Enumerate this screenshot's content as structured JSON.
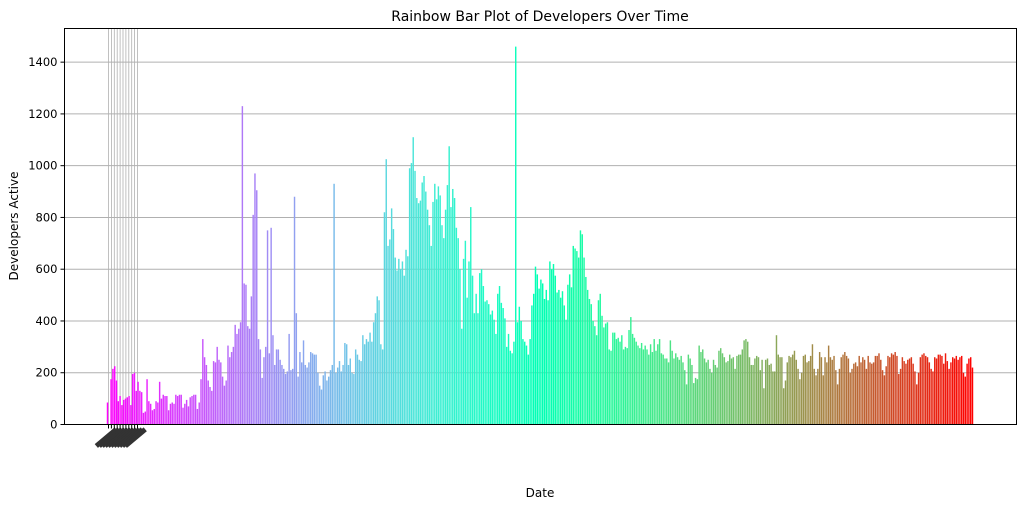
{
  "chart_data": {
    "type": "bar",
    "title": "Rainbow Bar Plot of Developers Over Time",
    "xlabel": "Date",
    "ylabel": "Developers Active",
    "ylim": [
      0,
      1530
    ],
    "yticks": [
      0,
      200,
      400,
      600,
      800,
      1000,
      1200,
      1400
    ],
    "grid": "y",
    "colormap": "rainbow",
    "x_tick_labels": "illegible (overlapping rotated date labels at start of axis)",
    "series": [
      {
        "values": [
          85,
          0,
          175,
          215,
          225,
          170,
          90,
          110,
          75,
          95,
          100,
          105,
          110,
          75,
          195,
          200,
          130,
          165,
          130,
          125,
          45,
          50,
          175,
          90,
          80,
          55,
          60,
          90,
          85,
          165,
          100,
          115,
          110,
          110,
          55,
          80,
          85,
          80,
          115,
          110,
          115,
          115,
          65,
          80,
          95,
          70,
          105,
          110,
          115,
          115,
          60,
          85,
          175,
          330,
          260,
          230,
          170,
          145,
          130,
          245,
          240,
          300,
          250,
          240,
          185,
          150,
          170,
          305,
          260,
          280,
          300,
          385,
          350,
          370,
          395,
          1230,
          545,
          540,
          380,
          370,
          495,
          810,
          970,
          905,
          330,
          290,
          180,
          260,
          300,
          750,
          275,
          760,
          345,
          230,
          290,
          290,
          250,
          230,
          215,
          195,
          205,
          350,
          210,
          215,
          880,
          430,
          185,
          280,
          240,
          325,
          230,
          220,
          240,
          280,
          275,
          270,
          270,
          200,
          150,
          135,
          190,
          205,
          170,
          185,
          210,
          230,
          930,
          200,
          220,
          245,
          205,
          230,
          315,
          310,
          230,
          255,
          200,
          195,
          290,
          270,
          250,
          245,
          345,
          310,
          330,
          320,
          355,
          320,
          395,
          430,
          495,
          480,
          310,
          290,
          820,
          1025,
          690,
          715,
          835,
          755,
          645,
          595,
          640,
          600,
          630,
          575,
          675,
          650,
          990,
          1010,
          1110,
          980,
          875,
          855,
          865,
          935,
          960,
          900,
          830,
          770,
          690,
          860,
          930,
          870,
          920,
          885,
          770,
          720,
          830,
          925,
          1075,
          840,
          910,
          875,
          760,
          720,
          600,
          370,
          640,
          710,
          490,
          630,
          840,
          575,
          430,
          505,
          430,
          585,
          600,
          535,
          475,
          480,
          465,
          425,
          440,
          405,
          350,
          505,
          535,
          470,
          450,
          410,
          300,
          350,
          285,
          275,
          320,
          1460,
          395,
          455,
          400,
          330,
          320,
          305,
          270,
          330,
          460,
          505,
          610,
          580,
          525,
          560,
          545,
          485,
          520,
          480,
          630,
          600,
          620,
          575,
          510,
          520,
          490,
          515,
          460,
          405,
          540,
          580,
          530,
          690,
          680,
          670,
          645,
          750,
          735,
          645,
          570,
          520,
          485,
          465,
          400,
          380,
          345,
          480,
          505,
          420,
          375,
          390,
          395,
          290,
          285,
          355,
          355,
          330,
          335,
          320,
          345,
          290,
          300,
          295,
          365,
          415,
          350,
          335,
          320,
          305,
          295,
          315,
          290,
          305,
          290,
          270,
          310,
          280,
          330,
          285,
          310,
          330,
          275,
          270,
          255,
          255,
          240,
          325,
          285,
          255,
          275,
          260,
          250,
          265,
          240,
          210,
          155,
          270,
          255,
          230,
          160,
          180,
          175,
          305,
          280,
          290,
          255,
          240,
          250,
          215,
          200,
          250,
          230,
          220,
          285,
          295,
          275,
          260,
          240,
          245,
          270,
          255,
          260,
          215,
          265,
          270,
          270,
          290,
          325,
          330,
          320,
          260,
          230,
          230,
          255,
          265,
          260,
          210,
          250,
          140,
          250,
          255,
          230,
          235,
          205,
          205,
          345,
          270,
          260,
          260,
          140,
          170,
          240,
          265,
          260,
          270,
          285,
          250,
          215,
          175,
          200,
          265,
          270,
          240,
          245,
          265,
          310,
          215,
          190,
          215,
          280,
          260,
          190,
          260,
          240,
          305,
          260,
          250,
          265,
          210,
          155,
          215,
          260,
          270,
          280,
          265,
          255,
          200,
          215,
          235,
          240,
          225,
          265,
          240,
          260,
          250,
          215,
          265,
          240,
          235,
          240,
          265,
          265,
          275,
          250,
          210,
          190,
          225,
          265,
          260,
          275,
          270,
          280,
          265,
          195,
          215,
          260,
          245,
          235,
          250,
          255,
          260,
          235,
          205,
          155,
          200,
          260,
          270,
          275,
          265,
          260,
          240,
          215,
          205,
          260,
          255,
          270,
          270,
          265,
          235,
          275,
          245,
          215,
          240,
          260,
          255,
          265,
          250,
          260,
          265,
          200,
          185,
          235,
          255,
          260,
          220
        ]
      }
    ]
  }
}
